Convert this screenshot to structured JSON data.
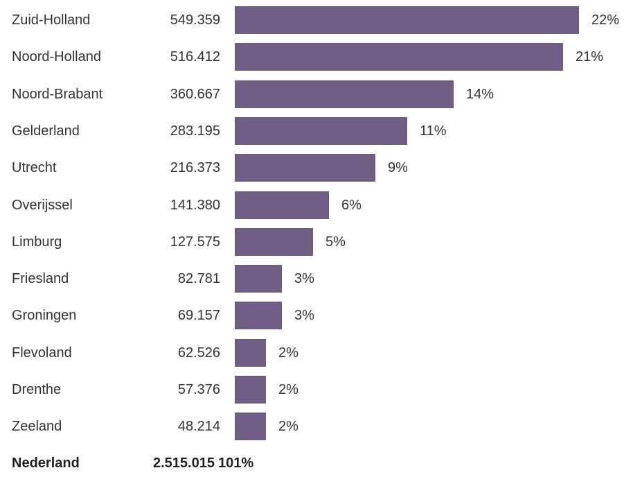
{
  "chart_data": {
    "type": "bar",
    "orientation": "horizontal",
    "bar_color": "#705d84",
    "categories": [
      "Zuid-Holland",
      "Noord-Holland",
      "Noord-Brabant",
      "Gelderland",
      "Utrecht",
      "Overijssel",
      "Limburg",
      "Friesland",
      "Groningen",
      "Flevoland",
      "Drenthe",
      "Zeeland"
    ],
    "values": [
      549359,
      516412,
      360667,
      283195,
      216373,
      141380,
      127575,
      82781,
      69157,
      62526,
      57376,
      48214
    ],
    "value_labels": [
      "549.359",
      "516.412",
      "360.667",
      "283.195",
      "216.373",
      "141.380",
      "127.575",
      "82.781",
      "69.157",
      "62.526",
      "57.376",
      "48.214"
    ],
    "percent_labels": [
      "22%",
      "21%",
      "14%",
      "11%",
      "9%",
      "6%",
      "5%",
      "3%",
      "3%",
      "2%",
      "2%",
      "2%"
    ],
    "percents": [
      22,
      21,
      14,
      11,
      9,
      6,
      5,
      3,
      3,
      2,
      2,
      2
    ],
    "total": {
      "label": "Nederland",
      "value_label": "2.515.015",
      "percent_label": "101%"
    }
  }
}
